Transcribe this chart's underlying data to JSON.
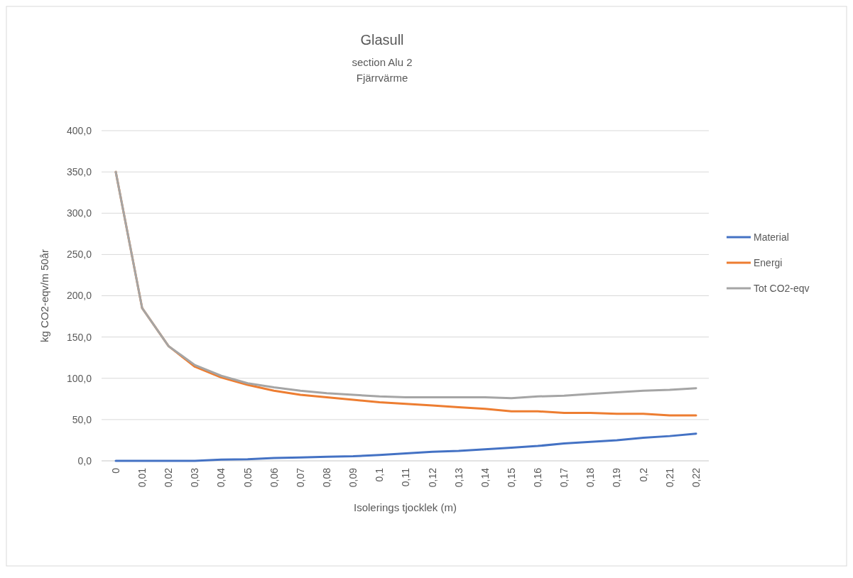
{
  "chart_data": {
    "type": "line",
    "title": "Glasull",
    "subtitle": "section Alu 2\nFjärrvärme",
    "xlabel": "Isolerings tjocklek (m)",
    "ylabel": "kg CO2-eqv/m 50år",
    "categories": [
      "0",
      "0,01",
      "0,02",
      "0,03",
      "0,04",
      "0,05",
      "0,06",
      "0,07",
      "0,08",
      "0,09",
      "0,1",
      "0,11",
      "0,12",
      "0,13",
      "0,14",
      "0,15",
      "0,16",
      "0,17",
      "0,18",
      "0,19",
      "0,2",
      "0,21",
      "0,22"
    ],
    "series": [
      {
        "name": "Material",
        "color": "#4472c4",
        "values": [
          0,
          0,
          0,
          0,
          1.5,
          2,
          3.5,
          4,
          5,
          5.5,
          7,
          9,
          11,
          12,
          14,
          16,
          18,
          21,
          23,
          25,
          28,
          30,
          33
        ]
      },
      {
        "name": "Energi",
        "color": "#ed7d31",
        "values": [
          350,
          185,
          139,
          114,
          101,
          92,
          85,
          80,
          77,
          74,
          71,
          69,
          67,
          65,
          63,
          60,
          60,
          58,
          58,
          57,
          57,
          55,
          55
        ]
      },
      {
        "name": "Tot CO2-eqv",
        "color": "#a5a5a5",
        "values": [
          350,
          185,
          139,
          116,
          103,
          94,
          89,
          85,
          82,
          80,
          78,
          77,
          77,
          77,
          77,
          76,
          78,
          79,
          81,
          83,
          85,
          86,
          88
        ]
      }
    ],
    "ylim": [
      0,
      400
    ],
    "yticks": [
      {
        "value": 0,
        "label": "0,0"
      },
      {
        "value": 50,
        "label": "50,0"
      },
      {
        "value": 100,
        "label": "100,0"
      },
      {
        "value": 150,
        "label": "150,0"
      },
      {
        "value": 200,
        "label": "200,0"
      },
      {
        "value": 250,
        "label": "250,0"
      },
      {
        "value": 300,
        "label": "300,0"
      },
      {
        "value": 350,
        "label": "350,0"
      },
      {
        "value": 400,
        "label": "400,0"
      }
    ],
    "grid": "y",
    "legend": "right",
    "marker": "none",
    "line_style": "solid"
  }
}
